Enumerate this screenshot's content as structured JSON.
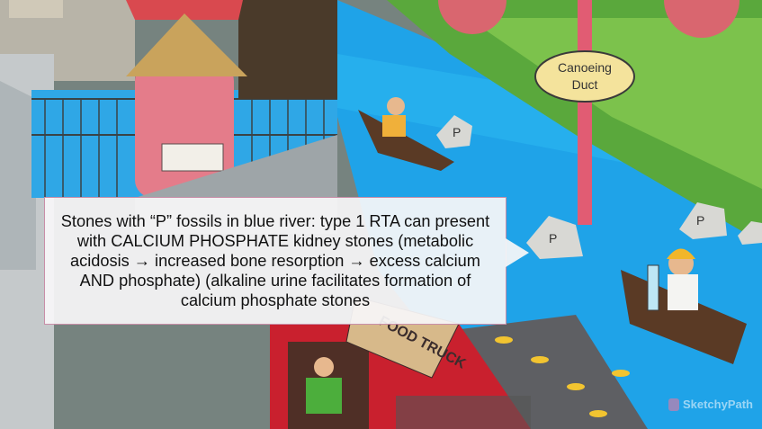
{
  "callout": {
    "text": "Stones with “P” fossils in blue river: type 1 RTA can present with CALCIUM PHOSPHATE kidney stones (metabolic acidosis → increased bone resorption → excess calcium AND phosphate) (alkaline urine facilitates formation of calcium phosphate stones"
  },
  "sign": {
    "line1": "Canoeing",
    "line2": "Duct"
  },
  "truck": {
    "label": "FOOD TRUCK"
  },
  "stones": {
    "letter": "P"
  },
  "watermark": {
    "text": "SketchyPath"
  },
  "colors": {
    "river": "#1fa3e8",
    "grass": "#5aa83c",
    "booth": "#e47c8a",
    "callout_border": "#c98ea8",
    "truck": "#c9202e"
  }
}
